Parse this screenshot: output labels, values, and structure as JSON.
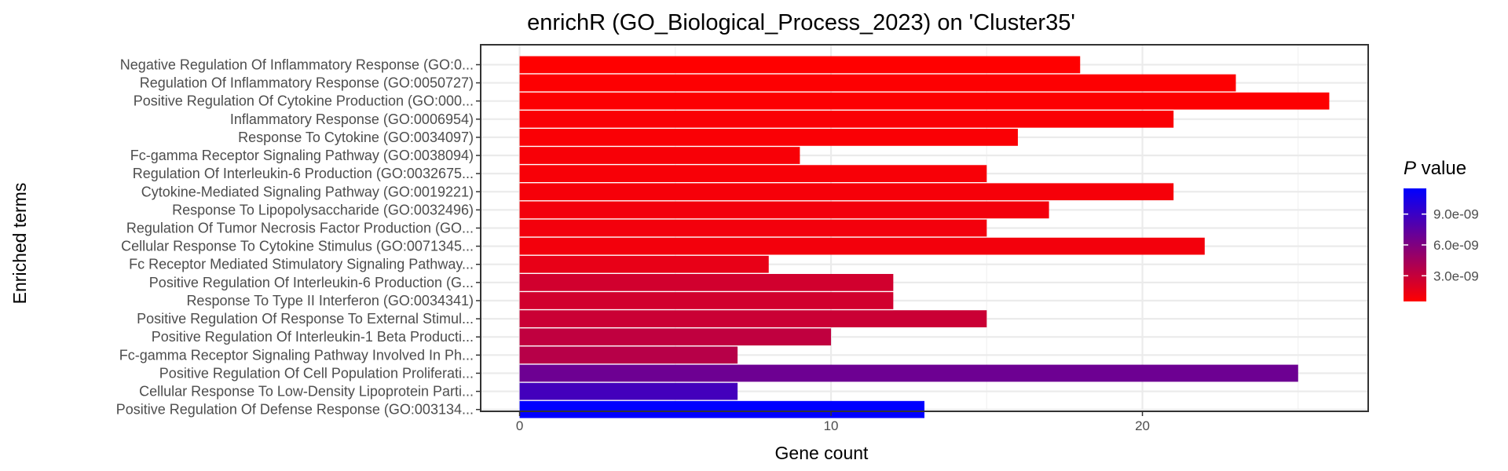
{
  "chart_data": {
    "type": "bar",
    "orientation": "horizontal",
    "title": "enrichR (GO_Biological_Process_2023) on 'Cluster35'",
    "xlabel": "Gene count",
    "ylabel": "Enriched terms",
    "xlim": [
      -1.25,
      27.25
    ],
    "x_ticks": [
      0,
      10,
      20
    ],
    "grid": true,
    "legend_position": "right",
    "legend": {
      "title_italic": "P",
      "title_rest": " value",
      "ticks": [
        {
          "value": 3e-09,
          "label": "3.0e-09"
        },
        {
          "value": 6e-09,
          "label": "6.0e-09"
        },
        {
          "value": 9e-09,
          "label": "9.0e-09"
        }
      ],
      "range": [
        5e-10,
        1.15e-08
      ],
      "low_color": "#ff0000",
      "high_color": "#0000ff"
    },
    "categories": [
      "Negative Regulation Of Inflammatory Response (GO:0...",
      "Regulation Of Inflammatory Response (GO:0050727)",
      "Positive Regulation Of Cytokine Production (GO:000...",
      "Inflammatory Response (GO:0006954)",
      "Response To Cytokine (GO:0034097)",
      "Fc-gamma Receptor Signaling Pathway (GO:0038094)",
      "Regulation Of Interleukin-6 Production (GO:0032675...",
      "Cytokine-Mediated Signaling Pathway (GO:0019221)",
      "Response To Lipopolysaccharide (GO:0032496)",
      "Regulation Of Tumor Necrosis Factor Production (GO...",
      "Cellular Response To Cytokine Stimulus (GO:0071345...",
      "Fc Receptor Mediated Stimulatory Signaling Pathway...",
      "Positive Regulation Of Interleukin-6 Production (G...",
      "Response To Type II Interferon (GO:0034341)",
      "Positive Regulation Of Response To External Stimul...",
      "Positive Regulation Of Interleukin-1 Beta Producti...",
      "Fc-gamma Receptor Signaling Pathway Involved In Ph...",
      "Positive Regulation Of Cell Population Proliferati...",
      "Cellular Response To Low-Density Lipoprotein Parti...",
      "Positive Regulation Of Defense Response (GO:003134..."
    ],
    "values": [
      18,
      23,
      26,
      21,
      16,
      9,
      15,
      21,
      17,
      15,
      22,
      8,
      12,
      12,
      15,
      10,
      7,
      25,
      7,
      13
    ],
    "p_values": [
      5e-10,
      6e-10,
      6e-10,
      7e-10,
      7e-10,
      8e-10,
      8e-10,
      9e-10,
      1e-09,
      1e-09,
      1e-09,
      1.5e-09,
      2.5e-09,
      2.5e-09,
      2.8e-09,
      3.2e-09,
      3.6e-09,
      6.8e-09,
      8.6e-09,
      1.15e-08
    ]
  }
}
